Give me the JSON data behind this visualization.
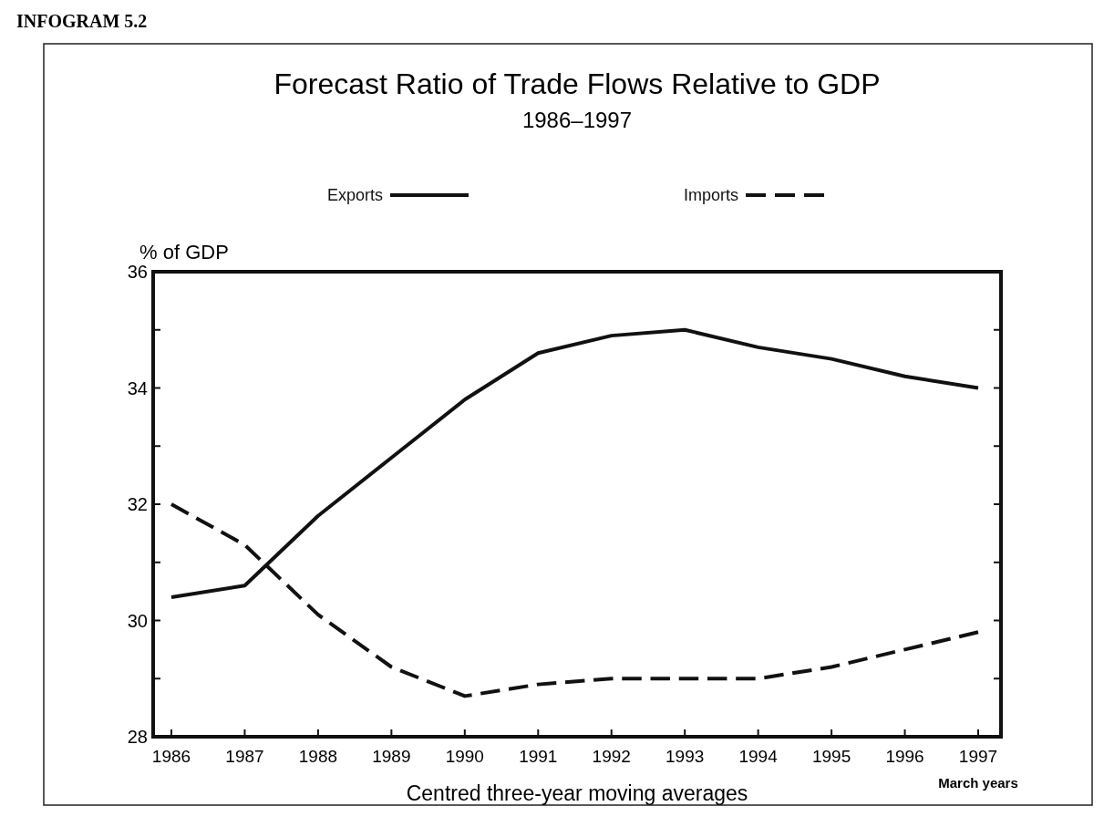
{
  "chart_data": {
    "type": "line",
    "title": "Forecast Ratio of Trade Flows Relative to GDP",
    "subtitle": "1986–1997",
    "ylabel": "% of GDP",
    "xlabel": "Centred three-year moving averages",
    "annotations": [
      "INFOGRAM 5.2",
      "March years"
    ],
    "categories": [
      "1986",
      "1987",
      "1988",
      "1989",
      "1990",
      "1991",
      "1992",
      "1993",
      "1994",
      "1995",
      "1996",
      "1997"
    ],
    "series": [
      {
        "name": "Exports",
        "color": "#111111",
        "line_style": "solid",
        "values": [
          30.4,
          30.6,
          31.8,
          32.8,
          33.8,
          34.6,
          34.9,
          35.0,
          34.7,
          34.5,
          34.2,
          34.0
        ]
      },
      {
        "name": "Imports",
        "color": "#111111",
        "line_style": "dashed",
        "values": [
          32.0,
          31.3,
          30.1,
          29.2,
          28.7,
          28.9,
          29.0,
          29.0,
          29.0,
          29.2,
          29.5,
          29.8
        ]
      }
    ],
    "ylim": [
      28,
      36
    ],
    "yticks": [
      28,
      {
        "value": 29,
        "label": null
      },
      32,
      {
        "value": 31,
        "label": null
      },
      30,
      {
        "value": 33,
        "label": null
      },
      34,
      {
        "value": 35,
        "label": null
      },
      36
    ],
    "grid": false,
    "legend": "top",
    "marker": "none"
  }
}
